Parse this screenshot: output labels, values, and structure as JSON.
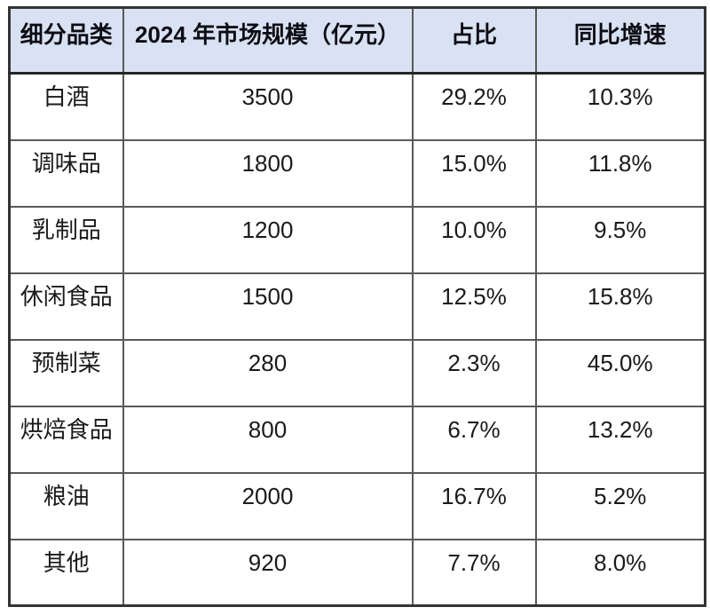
{
  "table": {
    "headers": [
      "细分品类",
      "2024 年市场规模（亿元）",
      "占比",
      "同比增速"
    ],
    "rows": [
      {
        "category": "白酒",
        "market_size": "3500",
        "share": "29.2%",
        "yoy_growth": "10.3%"
      },
      {
        "category": "调味品",
        "market_size": "1800",
        "share": "15.0%",
        "yoy_growth": "11.8%"
      },
      {
        "category": "乳制品",
        "market_size": "1200",
        "share": "10.0%",
        "yoy_growth": "9.5%"
      },
      {
        "category": "休闲食品",
        "market_size": "1500",
        "share": "12.5%",
        "yoy_growth": "15.8%"
      },
      {
        "category": "预制菜",
        "market_size": "280",
        "share": "2.3%",
        "yoy_growth": "45.0%"
      },
      {
        "category": "烘焙食品",
        "market_size": "800",
        "share": "6.7%",
        "yoy_growth": "13.2%"
      },
      {
        "category": "粮油",
        "market_size": "2000",
        "share": "16.7%",
        "yoy_growth": "5.2%"
      },
      {
        "category": "其他",
        "market_size": "920",
        "share": "7.7%",
        "yoy_growth": "8.0%"
      }
    ]
  },
  "colors": {
    "header_background": "#d9e2f3",
    "header_text": "#0d0d14",
    "body_text": "#1a1a1a",
    "inner_border": "#595959",
    "outer_border": "#333333",
    "page_background": "#ffffff"
  },
  "chart_data": {
    "type": "table",
    "columns": [
      "细分品类",
      "2024 年市场规模（亿元）",
      "占比",
      "同比增速"
    ],
    "rows": [
      [
        "白酒",
        3500,
        "29.2%",
        "10.3%"
      ],
      [
        "调味品",
        1800,
        "15.0%",
        "11.8%"
      ],
      [
        "乳制品",
        1200,
        "10.0%",
        "9.5%"
      ],
      [
        "休闲食品",
        1500,
        "12.5%",
        "15.8%"
      ],
      [
        "预制菜",
        280,
        "2.3%",
        "45.0%"
      ],
      [
        "烘焙食品",
        800,
        "6.7%",
        "13.2%"
      ],
      [
        "粮油",
        2000,
        "16.7%",
        "5.2%"
      ],
      [
        "其他",
        920,
        "7.7%",
        "8.0%"
      ]
    ]
  }
}
